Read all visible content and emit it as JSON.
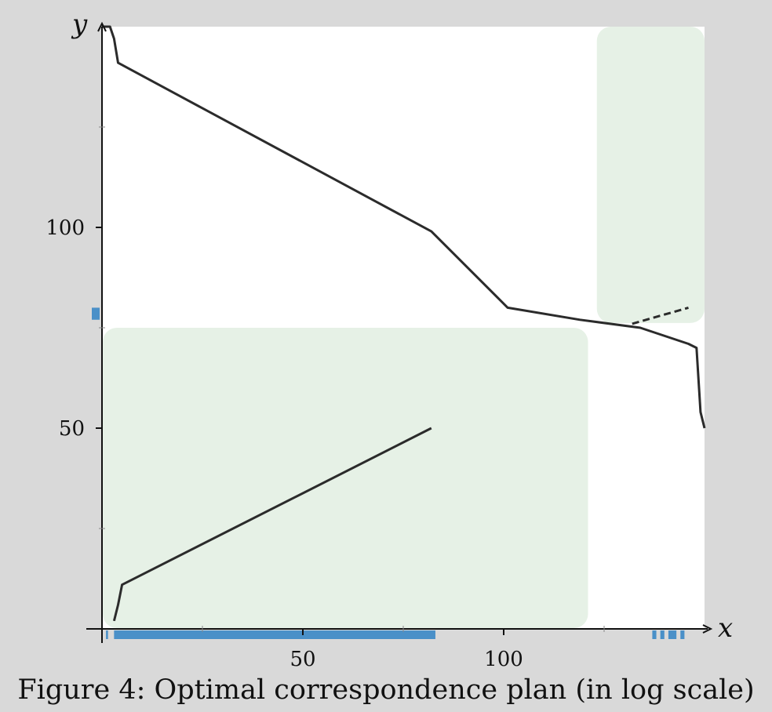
{
  "chart_data": {
    "type": "line",
    "title": "",
    "xlabel": "x",
    "ylabel": "y",
    "xlim": [
      0,
      150
    ],
    "ylim": [
      0,
      150
    ],
    "x_ticks": [
      50,
      100
    ],
    "y_ticks": [
      50,
      100
    ],
    "x_minor_ticks": [
      25,
      75,
      125
    ],
    "y_minor_ticks": [
      25,
      75,
      125
    ],
    "grid": false,
    "legend": "none",
    "background_regions": [
      {
        "x": [
          0,
          121
        ],
        "y": [
          0,
          75
        ],
        "color": "#e6f1e6"
      },
      {
        "x": [
          123,
          150
        ],
        "y": [
          76,
          150
        ],
        "color": "#e6f1e6"
      }
    ],
    "series": [
      {
        "style": "solid",
        "color": "#2b2b2b",
        "points": [
          [
            0,
            150
          ],
          [
            2,
            150
          ],
          [
            3,
            147
          ],
          [
            4,
            141
          ],
          [
            82,
            99
          ],
          [
            101,
            80
          ],
          [
            119,
            77
          ],
          [
            134,
            75
          ],
          [
            146,
            71
          ],
          [
            148,
            70
          ],
          [
            149,
            54
          ],
          [
            150,
            50
          ]
        ]
      },
      {
        "style": "solid",
        "color": "#2b2b2b",
        "points": [
          [
            3,
            2
          ],
          [
            4,
            6
          ],
          [
            5,
            11
          ],
          [
            82,
            50
          ]
        ]
      },
      {
        "style": "dashed",
        "color": "#2b2b2b",
        "points": [
          [
            132,
            76
          ],
          [
            146,
            80
          ]
        ]
      }
    ],
    "x_marginal_bars": [
      [
        1,
        1.5
      ],
      [
        3,
        83
      ],
      [
        137,
        138
      ],
      [
        139,
        140
      ],
      [
        141,
        143
      ],
      [
        144,
        145
      ]
    ],
    "y_marginal_bars": [
      [
        77,
        80
      ]
    ],
    "marginal_color": "#4a90c8"
  },
  "caption": "Figure 4: Optimal correspondence plan (in log scale)"
}
